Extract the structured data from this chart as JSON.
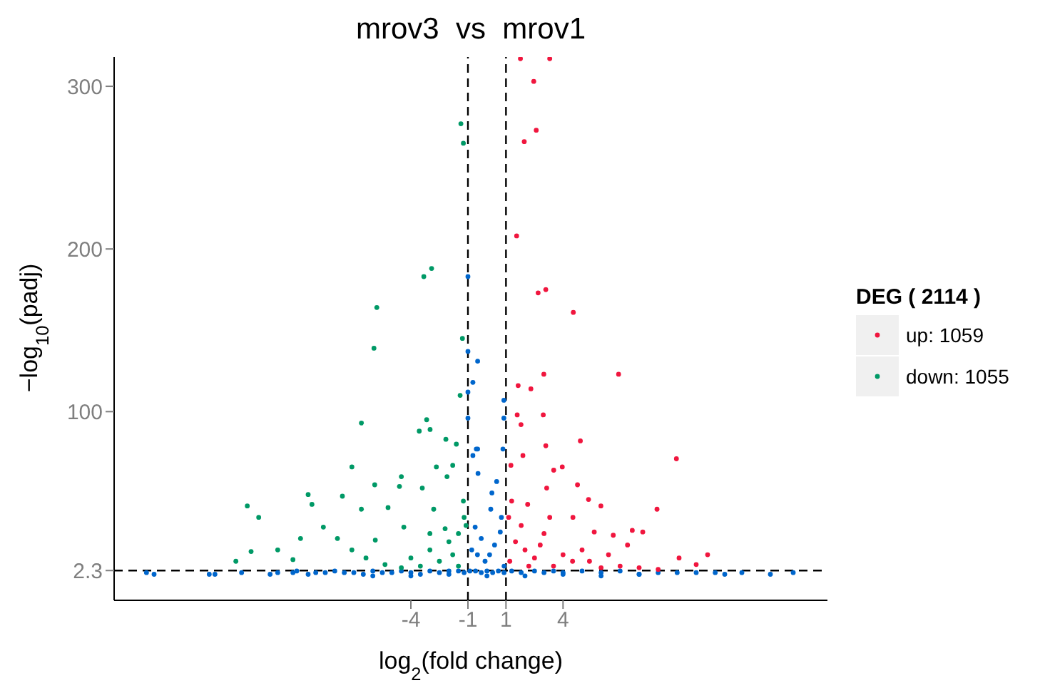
{
  "chart_data": {
    "type": "scatter",
    "title": "mrov3  vs  mrov1",
    "xlabel": "log$_{2}$(fold change)",
    "ylabel": "−log$_{10}$(padj)",
    "legend_title": "DEG ( 2114 )",
    "legend": "right",
    "marker": "circle",
    "xlim": [
      -19.6,
      17.9
    ],
    "xticks": [
      -4,
      -1,
      1,
      4
    ],
    "ylim": [
      -16,
      318
    ],
    "yticks": [
      2.3,
      100,
      200,
      300
    ],
    "ref_lines": [
      {
        "axis": "x",
        "value": -1,
        "color": "#000000",
        "line_style": "dashed"
      },
      {
        "axis": "x",
        "value": 1,
        "color": "#000000",
        "line_style": "dashed"
      },
      {
        "axis": "y",
        "value": 2.3,
        "color": "#000000",
        "line_style": "dashed"
      }
    ],
    "series": [
      {
        "color": "#0066cc",
        "x": [
          -17.9,
          -17.5,
          -14.6,
          -14.3,
          -12.9,
          -11.4,
          -11,
          -10.2,
          -10,
          -9.4,
          -9,
          -8.5,
          -8,
          -7.5,
          -7,
          -6.5,
          -6,
          -5.5,
          -5,
          -4.5,
          -4,
          -3.5,
          -3,
          -2.5,
          -2,
          -1.5,
          -1.2,
          -0.9,
          -0.6,
          -0.3,
          0,
          0.3,
          0.6,
          0.9,
          1.3,
          1.8,
          2.5,
          3,
          3.5,
          4,
          5,
          6,
          7,
          8,
          9,
          10,
          11,
          12,
          12.5,
          13.4,
          14.9,
          16.1,
          -6,
          -4,
          -2,
          0,
          2,
          4,
          6,
          8,
          -1,
          -1,
          -0.49,
          -0.74,
          -1,
          -1,
          -0.56,
          -0.47,
          -0.74,
          0.89,
          0.89,
          -0.49,
          0.84,
          0.51,
          0.26,
          0.76,
          -0.62,
          0.14,
          -0.3,
          0.4,
          -0.8,
          0.7,
          -0.1,
          0.2,
          -0.5,
          0.9
        ],
        "values": [
          1,
          0,
          0,
          0,
          1,
          0,
          1,
          1,
          2,
          0,
          1,
          1,
          2,
          1,
          1,
          0,
          2,
          1,
          1,
          2,
          1,
          0,
          2,
          1,
          2,
          2,
          1,
          2,
          2,
          1,
          2,
          1,
          2,
          1,
          2,
          1,
          2,
          1,
          2,
          1,
          2,
          1,
          2,
          0,
          1,
          1,
          1,
          1,
          0,
          1,
          0,
          1,
          -1,
          -1,
          0,
          -1,
          -1,
          0,
          -1,
          0,
          183,
          137,
          131,
          118,
          112,
          96,
          77,
          62,
          73,
          107,
          96,
          77,
          77,
          57,
          50,
          35,
          29,
          12,
          22,
          18,
          15,
          26,
          8,
          40,
          12,
          5
        ]
      },
      {
        "name": "up: 1059",
        "color": "#f0163e",
        "x": [
          1.76,
          3.3,
          2.46,
          2.59,
          1.96,
          1.56,
          2.69,
          3.09,
          4.54,
          2.99,
          6.92,
          1.64,
          2.31,
          9.96,
          2.96,
          1.59,
          1.79,
          4.91,
          3.09,
          3.96,
          3.51,
          4.76,
          5.34,
          5.99,
          8.94,
          8.19,
          7.64,
          11.6,
          10.1,
          11,
          5.64,
          4.52,
          3.14,
          2.14,
          1.14,
          1.26,
          1.89,
          6.64,
          7.39,
          6.39,
          5.39,
          1.5,
          2,
          2.5,
          3,
          1.2,
          3.5,
          4,
          1.8,
          2.8,
          4.5,
          1.3,
          2.2,
          5,
          3.3,
          6,
          7,
          8,
          9
        ],
        "values": [
          317,
          317,
          303,
          273,
          266,
          208,
          173,
          175,
          161,
          123,
          123,
          116,
          114,
          71,
          98,
          98,
          92,
          82,
          79,
          66,
          64,
          55,
          46,
          42,
          40,
          26,
          27,
          12,
          10,
          6,
          26,
          35,
          53,
          43,
          35,
          67,
          73,
          24,
          18,
          12,
          8,
          20,
          15,
          10,
          25,
          8,
          5,
          12,
          30,
          18,
          8,
          45,
          5,
          15,
          35,
          4,
          5,
          4,
          3
        ]
      },
      {
        "name": "down: 1055",
        "color": "#009966",
        "x": [
          -1.37,
          -1.24,
          -2.91,
          -3.32,
          -5.79,
          -5.94,
          -1.29,
          -1.41,
          -6.6,
          -3.17,
          -2.99,
          -3.56,
          -2.16,
          -1.61,
          -12.6,
          -12,
          -13.2,
          -12.4,
          -11,
          -9.4,
          -9.2,
          -8.6,
          -7.6,
          -7.1,
          -5.9,
          -6.6,
          -5.2,
          -4.6,
          -4.5,
          -3.4,
          -2.66,
          -1.8,
          -2.1,
          -1.24,
          -9.8,
          -10.2,
          -4.37,
          -5.87,
          -7.86,
          -7.1,
          -6.36,
          -5.36,
          -4,
          -3,
          -2,
          -1.5,
          -2.5,
          -1.2,
          -3.5,
          -4.5,
          -1.8,
          -2.2,
          -3,
          -1.5,
          -2.8,
          -1.1
        ],
        "values": [
          277,
          265,
          188,
          183,
          164,
          139,
          145,
          110,
          93,
          95,
          89,
          88,
          83,
          80,
          42,
          35,
          8,
          14,
          15,
          49,
          43,
          29,
          48,
          66,
          55,
          40,
          41,
          54,
          60,
          53,
          66,
          67,
          60,
          45,
          22,
          9,
          29,
          21,
          22,
          15,
          10,
          6,
          10,
          15,
          20,
          25,
          8,
          35,
          5,
          4,
          12,
          28,
          25,
          5,
          40,
          30
        ]
      }
    ]
  }
}
